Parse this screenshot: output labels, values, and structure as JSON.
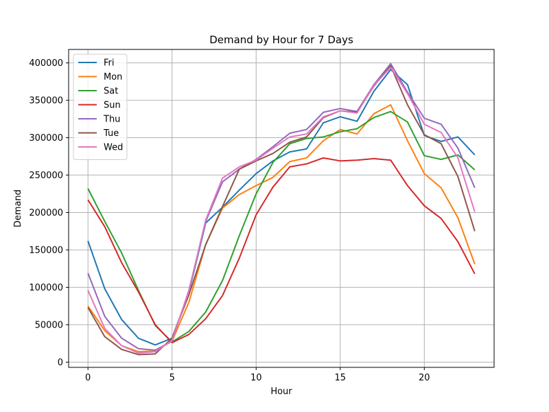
{
  "chart_data": {
    "type": "line",
    "title": "Demand by Hour for 7 Days",
    "xlabel": "Hour",
    "ylabel": "Demand",
    "xlim": [
      -1.15,
      24.15
    ],
    "ylim": [
      -7000,
      418000
    ],
    "xticks": [
      0,
      5,
      10,
      15,
      20
    ],
    "yticks": [
      0,
      50000,
      100000,
      150000,
      200000,
      250000,
      300000,
      350000,
      400000
    ],
    "grid": true,
    "legend_position": "top-left",
    "x": [
      0,
      1,
      2,
      3,
      4,
      5,
      6,
      7,
      8,
      9,
      10,
      11,
      12,
      13,
      14,
      15,
      16,
      17,
      18,
      19,
      20,
      21,
      22,
      23
    ],
    "series": [
      {
        "name": "Fri",
        "color": "#1f77b4",
        "values": [
          162000,
          98000,
          57000,
          32000,
          23000,
          32000,
          93000,
          186000,
          207000,
          230000,
          252000,
          269000,
          281000,
          285000,
          320000,
          328000,
          322000,
          362000,
          391000,
          371000,
          303000,
          295000,
          301000,
          277000
        ]
      },
      {
        "name": "Mon",
        "color": "#ff7f0e",
        "values": [
          75000,
          42000,
          22000,
          14000,
          15000,
          28000,
          80000,
          157000,
          206000,
          224000,
          236000,
          247000,
          268000,
          273000,
          296000,
          311000,
          305000,
          332000,
          344000,
          296000,
          252000,
          233000,
          193000,
          131000
        ]
      },
      {
        "name": "Sat",
        "color": "#2ca02c",
        "values": [
          232000,
          188000,
          146000,
          96000,
          49000,
          27000,
          41000,
          67000,
          109000,
          169000,
          225000,
          267000,
          292000,
          299000,
          301000,
          308000,
          312000,
          327000,
          335000,
          321000,
          276000,
          271000,
          277000,
          257000
        ]
      },
      {
        "name": "Sun",
        "color": "#d62728",
        "values": [
          217000,
          181000,
          133000,
          94000,
          50000,
          26000,
          37000,
          58000,
          89000,
          139000,
          197000,
          234000,
          261000,
          265000,
          273000,
          269000,
          270000,
          272000,
          270000,
          236000,
          209000,
          192000,
          161000,
          118000
        ]
      },
      {
        "name": "Thu",
        "color": "#9467bd",
        "values": [
          119000,
          61000,
          32000,
          18000,
          16000,
          28000,
          96000,
          188000,
          241000,
          258000,
          271000,
          288000,
          306000,
          311000,
          334000,
          339000,
          335000,
          371000,
          399000,
          361000,
          326000,
          318000,
          286000,
          233000
        ]
      },
      {
        "name": "Tue",
        "color": "#8c564b",
        "values": [
          73000,
          34000,
          17000,
          10000,
          11000,
          32000,
          90000,
          157000,
          208000,
          258000,
          269000,
          279000,
          294000,
          301000,
          327000,
          336000,
          334000,
          369000,
          396000,
          344000,
          304000,
          292000,
          248000,
          175000
        ]
      },
      {
        "name": "Wed",
        "color": "#e377c2",
        "values": [
          96000,
          45000,
          22000,
          12000,
          14000,
          29000,
          95000,
          190000,
          246000,
          261000,
          270000,
          286000,
          301000,
          305000,
          328000,
          336000,
          333000,
          370000,
          394000,
          359000,
          318000,
          307000,
          273000,
          201000
        ]
      }
    ]
  }
}
